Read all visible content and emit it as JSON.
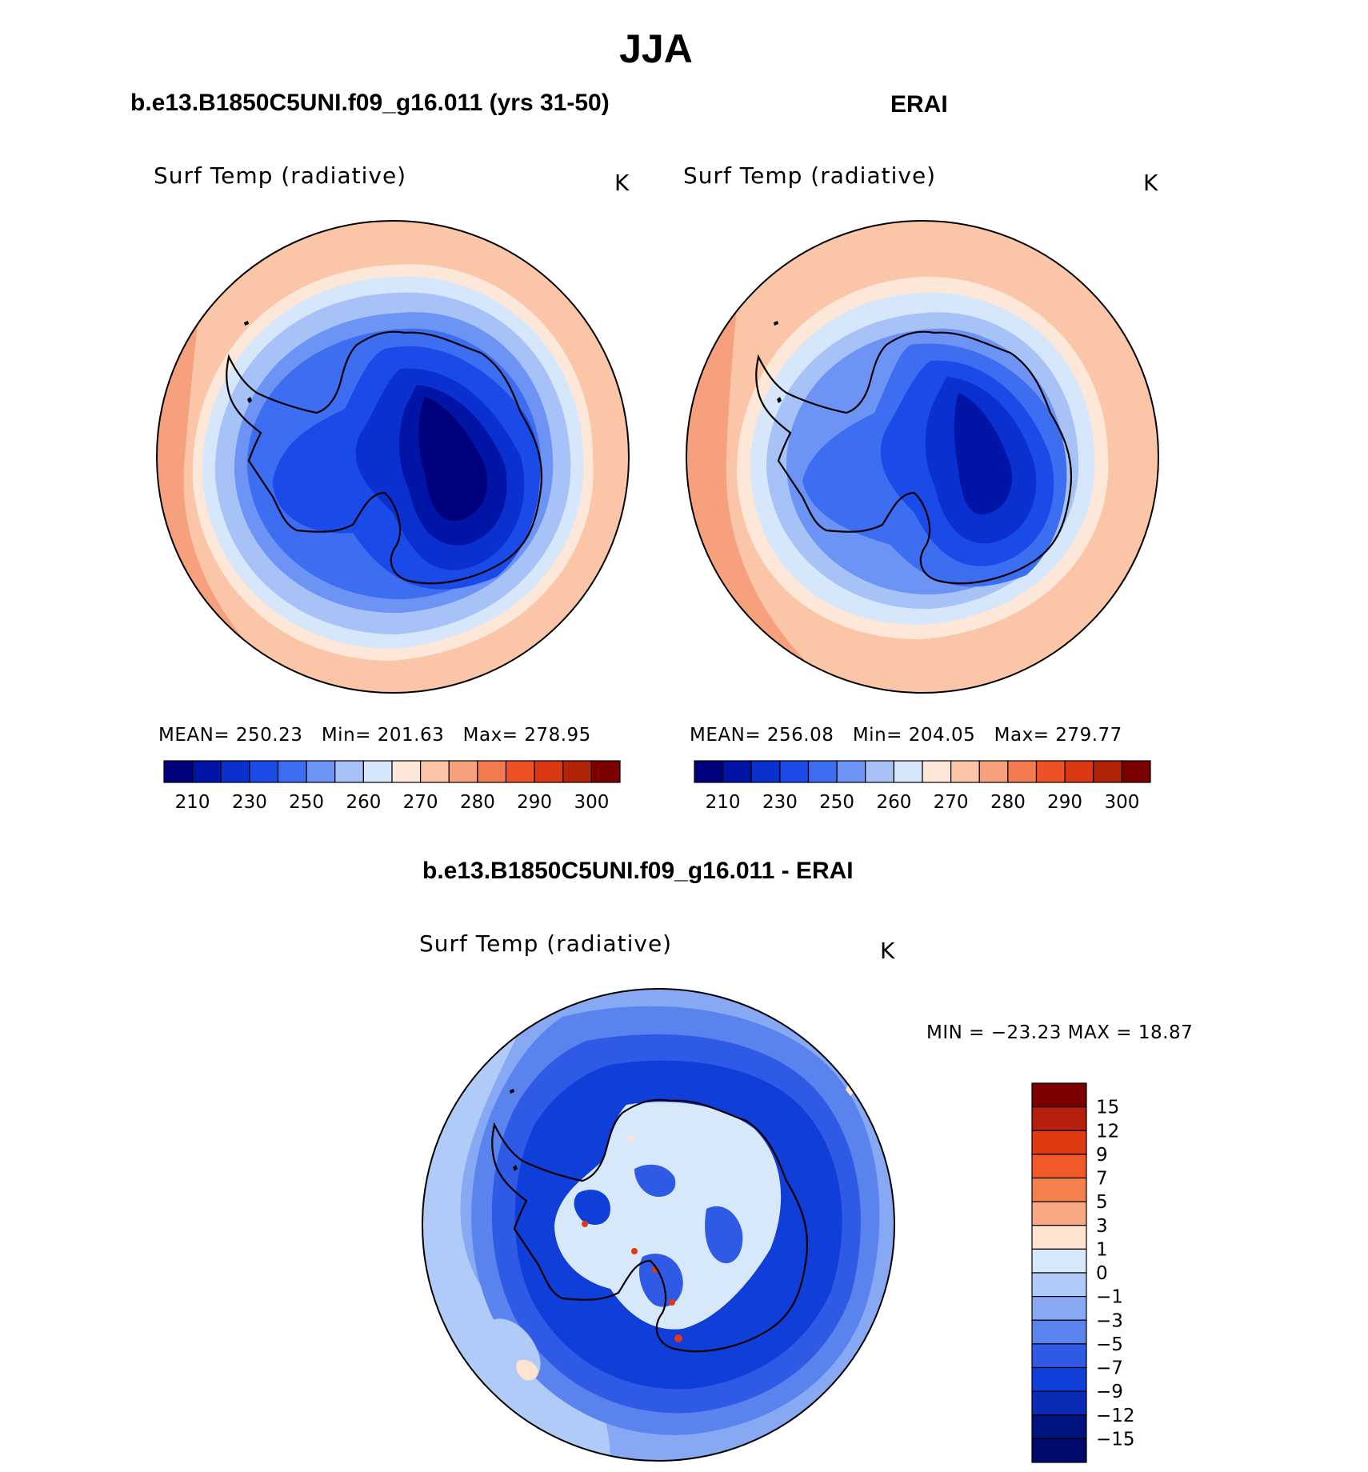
{
  "figure": {
    "title": "JJA"
  },
  "panel_left": {
    "title": "b.e13.B1850C5UNI.f09_g16.011 (yrs 31-50)",
    "variable": "Surf Temp (radiative)",
    "units": "K",
    "stats": {
      "mean_label": "MEAN=",
      "mean": "250.23",
      "min_label": "Min=",
      "min": "201.63",
      "max_label": "Max=",
      "max": "278.95"
    }
  },
  "panel_right": {
    "title": "ERAI",
    "variable": "Surf Temp (radiative)",
    "units": "K",
    "stats": {
      "mean_label": "MEAN=",
      "mean": "256.08",
      "min_label": "Min=",
      "min": "204.05",
      "max_label": "Max=",
      "max": "279.77"
    }
  },
  "panel_diff": {
    "title": "b.e13.B1850C5UNI.f09_g16.011 - ERAI",
    "variable": "Surf Temp (radiative)",
    "units": "K",
    "stats_text": "MIN = −23.23 MAX =   18.87"
  },
  "colorbar_abs": {
    "colors": [
      "#00007d",
      "#0014a6",
      "#0a30d0",
      "#1a4ae8",
      "#3d6df0",
      "#6d94f5",
      "#a7c2f7",
      "#d6e6fb",
      "#fde7d8",
      "#fbc6a8",
      "#f6a07d",
      "#f47a50",
      "#ef5127",
      "#da3813",
      "#b12407",
      "#7d0000"
    ],
    "labels": [
      "210",
      "230",
      "250",
      "260",
      "270",
      "280",
      "290",
      "300"
    ]
  },
  "colorbar_diff": {
    "colors": [
      "#7d0000",
      "#b5200c",
      "#dd3a10",
      "#f05a28",
      "#f4804e",
      "#f8a882",
      "#fde3d0",
      "#d8e8fb",
      "#b1cbf8",
      "#87a9f4",
      "#5a83ee",
      "#2f5ae6",
      "#0f3ed8",
      "#0a2bb5",
      "#00147f"
    ],
    "labels": [
      "15",
      "12",
      "9",
      "7",
      "5",
      "3",
      "1",
      "0",
      "−1",
      "−3",
      "−5",
      "−7",
      "−9",
      "−12",
      "−15"
    ]
  },
  "map_palette": {
    "abs": [
      "#f6a07d",
      "#fbc6a8",
      "#fde7d8",
      "#d6e6fb",
      "#a7c2f7",
      "#6d94f5",
      "#3d6df0",
      "#1a4ae8",
      "#0a30d0",
      "#0014a6",
      "#00007d"
    ],
    "diff": [
      "#b1cbf8",
      "#87a9f4",
      "#5a83ee",
      "#2f5ae6",
      "#0f3ed8",
      "#d8e8fb",
      "#fde3d0",
      "#dd3a10"
    ]
  }
}
